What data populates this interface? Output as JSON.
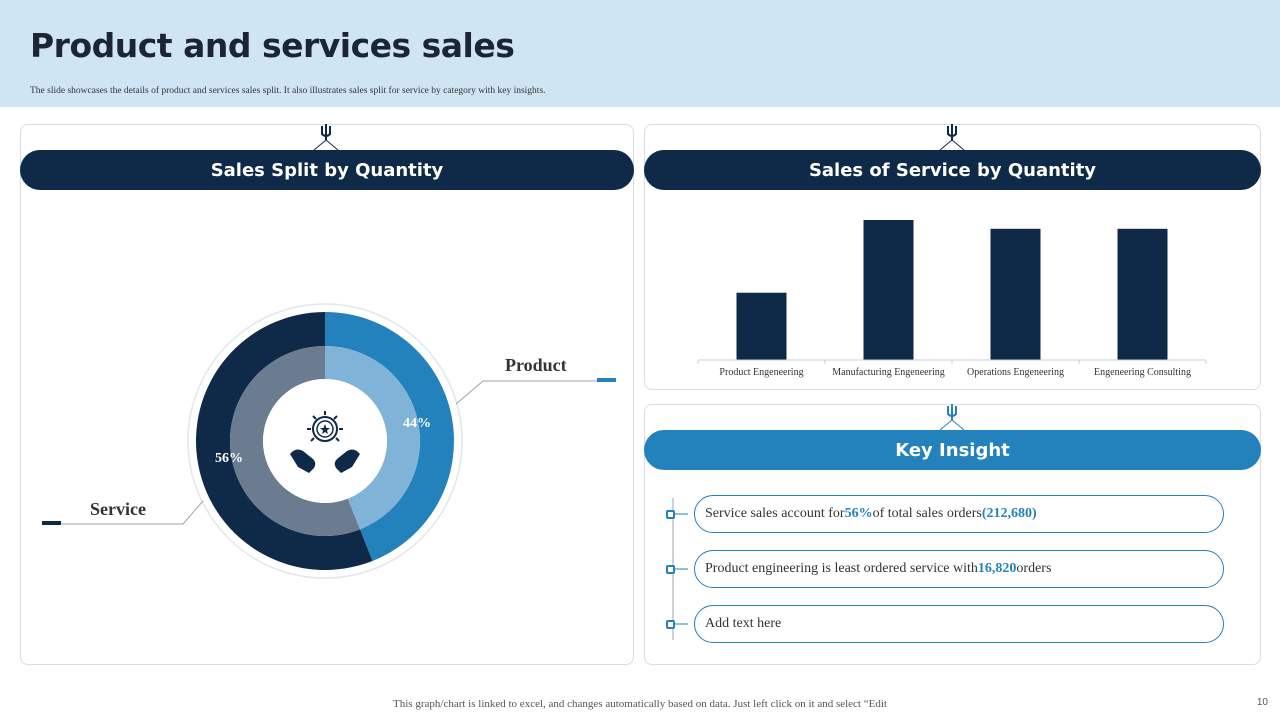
{
  "header": {
    "title": "Product and services sales",
    "subtitle": "The slide showcases the details of product and services sales split. It also illustrates sales split for service by category with key insights."
  },
  "left_panel": {
    "heading": "Sales Split by Quantity",
    "donut": {
      "product_label": "Product",
      "service_label": "Service",
      "product_pct": "44%",
      "service_pct": "56%",
      "product_value": 44,
      "service_value": 56,
      "center_icon": "hands-holding-star-icon"
    }
  },
  "right_top_panel": {
    "heading": "Sales of Service by Quantity"
  },
  "chart_data": {
    "type": "bar",
    "title": "Sales of Service by Quantity",
    "categories": [
      "Product Engeneering",
      "Manufacturing Engeneering",
      "Operations Engeneering",
      "Engeneering Consulting"
    ],
    "values": [
      16820,
      35000,
      32800,
      32800
    ],
    "ylim": [
      0,
      40000
    ],
    "xlabel": "",
    "ylabel": "",
    "grid": false,
    "color": "#0f2948"
  },
  "insight_panel": {
    "heading": "Key Insight",
    "items": [
      {
        "pre": "Service sales account for ",
        "b1": "56%",
        "mid": " of total sales orders ",
        "b2": "(212,680)",
        "post": ""
      },
      {
        "pre": "Product engineering  is least ordered service with ",
        "b1": "16,820",
        "mid": " orders",
        "b2": "",
        "post": ""
      },
      {
        "pre": "Add text here",
        "b1": "",
        "mid": "",
        "b2": "",
        "post": ""
      }
    ]
  },
  "footer": {
    "note": "This graph/chart is linked to excel,  and changes  automatically based on data. Just left click on it and select  “Edit",
    "page_number": "10"
  },
  "colors": {
    "dark_navy": "#0f2948",
    "accent_blue": "#2381bc",
    "light_blue": "#7fb4d8",
    "slate": "#6b7c90",
    "header_bg": "#d0e5f4"
  }
}
